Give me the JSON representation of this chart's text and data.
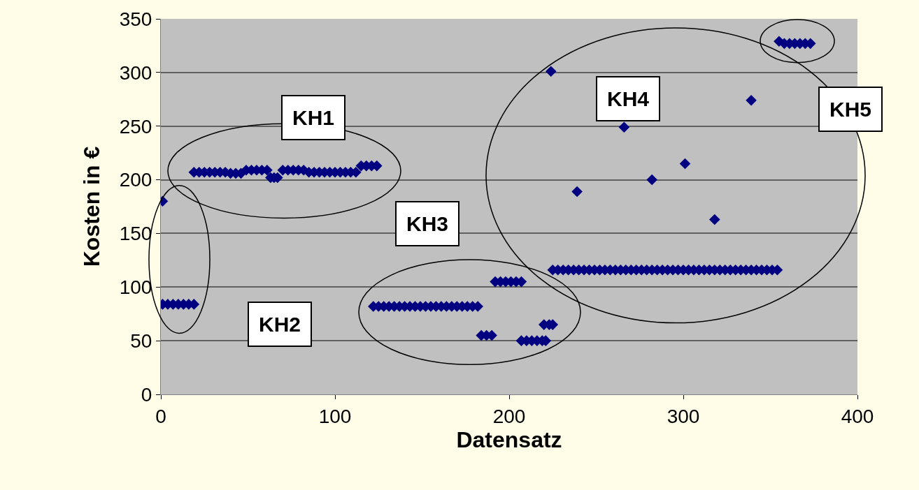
{
  "chart_data": {
    "type": "scatter",
    "xlabel": "Datensatz",
    "ylabel": "Kosten in €",
    "annotations": [
      "KH1",
      "KH2",
      "KH3",
      "KH4",
      "KH5"
    ],
    "series": [
      {
        "color": "#000080",
        "x": [
          1,
          1,
          4,
          7,
          10,
          13,
          16,
          19,
          19,
          22,
          25,
          28,
          31,
          34,
          37,
          40,
          43,
          46,
          49,
          52,
          55,
          58,
          61,
          63,
          65,
          67,
          70,
          73,
          76,
          79,
          82,
          85,
          88,
          91,
          94,
          97,
          100,
          103,
          106,
          109,
          112,
          115,
          118,
          121,
          124,
          122,
          125,
          128,
          131,
          134,
          137,
          140,
          143,
          146,
          149,
          152,
          155,
          158,
          161,
          164,
          167,
          170,
          173,
          176,
          179,
          182,
          184,
          187,
          190,
          192,
          195,
          198,
          201,
          204,
          207,
          207,
          210,
          213,
          216,
          219,
          221,
          220,
          223,
          225,
          225,
          228,
          231,
          234,
          237,
          240,
          243,
          246,
          249,
          252,
          255,
          258,
          261,
          264,
          267,
          270,
          273,
          276,
          279,
          282,
          285,
          288,
          291,
          294,
          297,
          300,
          303,
          306,
          309,
          312,
          315,
          318,
          321,
          324,
          327,
          330,
          333,
          336,
          339,
          342,
          345,
          348,
          351,
          354,
          224,
          239,
          266,
          282,
          301,
          318,
          339,
          355,
          358,
          361,
          364,
          367,
          370,
          373
        ],
        "values": [
          180,
          84,
          84,
          84,
          84,
          84,
          84,
          84,
          207,
          207,
          207,
          207,
          207,
          207,
          207,
          206,
          206,
          206,
          209,
          209,
          209,
          209,
          209,
          202,
          202,
          202,
          209,
          209,
          209,
          209,
          209,
          207,
          207,
          207,
          207,
          207,
          207,
          207,
          207,
          207,
          207,
          213,
          213,
          213,
          213,
          82,
          82,
          82,
          82,
          82,
          82,
          82,
          82,
          82,
          82,
          82,
          82,
          82,
          82,
          82,
          82,
          82,
          82,
          82,
          82,
          82,
          55,
          55,
          55,
          105,
          105,
          105,
          105,
          105,
          105,
          50,
          50,
          50,
          50,
          50,
          50,
          65,
          65,
          65,
          116,
          116,
          116,
          116,
          116,
          116,
          116,
          116,
          116,
          116,
          116,
          116,
          116,
          116,
          116,
          116,
          116,
          116,
          116,
          116,
          116,
          116,
          116,
          116,
          116,
          116,
          116,
          116,
          116,
          116,
          116,
          116,
          116,
          116,
          116,
          116,
          116,
          116,
          116,
          116,
          116,
          116,
          116,
          116,
          301,
          189,
          249,
          200,
          215,
          163,
          274,
          329,
          327,
          327,
          327,
          327,
          327,
          327
        ]
      }
    ],
    "xlim": [
      0,
      400
    ],
    "xticks": [
      0,
      100,
      200,
      300,
      400
    ],
    "ylim": [
      0,
      350
    ],
    "yticks": [
      0,
      50,
      100,
      150,
      200,
      250,
      300,
      350
    ],
    "grid": "y",
    "marker": "diamond"
  }
}
